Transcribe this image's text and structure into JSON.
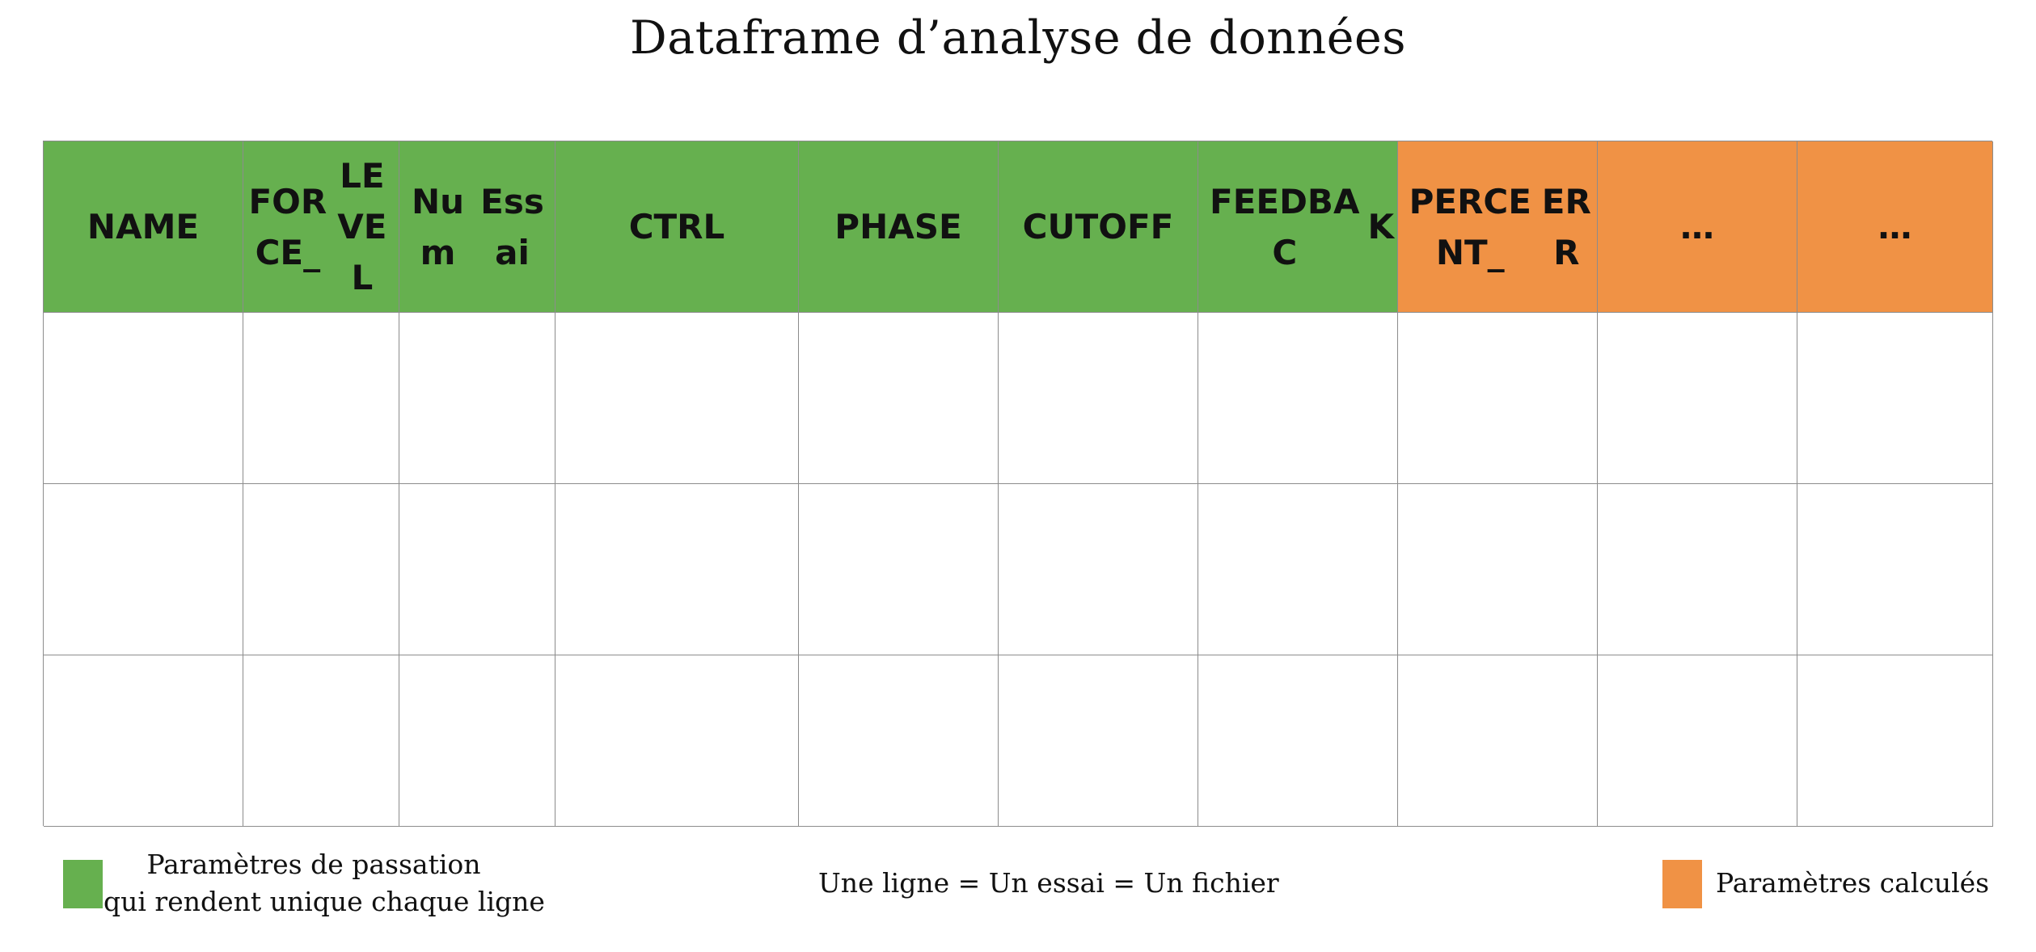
{
  "title": "Dataframe d’analyse de données",
  "colors": {
    "input_params": "#66b04f",
    "computed_params": "#f09245",
    "grid_line": "#8c8c8c"
  },
  "columns": [
    {
      "label": "NAME",
      "group": "input"
    },
    {
      "label": "FORCE_\nLEVEL",
      "group": "input"
    },
    {
      "label": "Num\nEssai",
      "group": "input"
    },
    {
      "label": "CTRL",
      "group": "input"
    },
    {
      "label": "PHASE",
      "group": "input"
    },
    {
      "label": "CUTOFF",
      "group": "input"
    },
    {
      "label": "FEEDBAC\nK",
      "group": "input"
    },
    {
      "label": "PERCENT_\nERR",
      "group": "computed"
    },
    {
      "label": "…",
      "group": "computed"
    },
    {
      "label": "…",
      "group": "computed"
    }
  ],
  "empty_rows": 3,
  "legend": {
    "input_label_line1": "Paramètres de passation",
    "input_label_line2": "qui rendent unique chaque ligne",
    "center_note": "Une ligne = Un essai = Un fichier",
    "computed_label": "Paramètres calculés"
  }
}
